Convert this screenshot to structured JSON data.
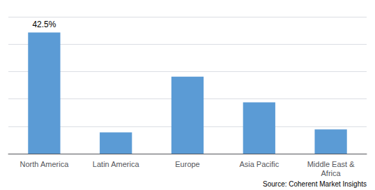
{
  "chart_data": {
    "type": "bar",
    "categories": [
      "North America",
      "Latin America",
      "Europe",
      "Asia Pacific",
      "Middle East &\nAfrica"
    ],
    "values": [
      42.5,
      7.5,
      27.0,
      18.0,
      8.5
    ],
    "color": "#5b9bd5",
    "ylim": [
      0,
      48
    ],
    "yticks": [
      0,
      9.6,
      19.2,
      28.8,
      38.4,
      48
    ],
    "grid": true,
    "tick_labels": "x",
    "annotations": [
      {
        "text": "42.5%",
        "category": "North America"
      },
      {
        "text": "Source: Coherent Market Insights"
      }
    ]
  }
}
